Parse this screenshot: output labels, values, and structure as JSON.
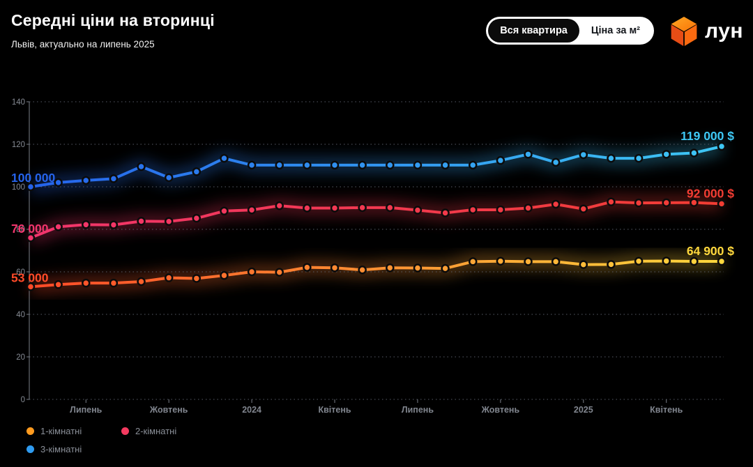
{
  "header": {
    "title": "Середні ціни на вторинці",
    "subtitle": "Львів, актуально на липень 2025"
  },
  "toggle": {
    "options": [
      {
        "label": "Вся квартира",
        "active": true
      },
      {
        "label": "Ціна за м²",
        "active": false
      }
    ]
  },
  "logo": {
    "text": "лун"
  },
  "legend": [
    {
      "label": "1-кімнатні",
      "color": "#ff9b1f"
    },
    {
      "label": "2-кімнатні",
      "color": "#f43a5f"
    },
    {
      "label": "3-кімнатні",
      "color": "#2f9bf0"
    }
  ],
  "chart_data": {
    "type": "line",
    "title": "Середні ціни на вторинці",
    "subtitle": "Львів, актуально на липень 2025",
    "unit": "thousand USD",
    "ylim": [
      0,
      140
    ],
    "y_ticks": [
      0,
      20,
      40,
      60,
      80,
      100,
      120,
      140
    ],
    "grid": "dotted-horizontal",
    "x_tick_labels": [
      {
        "i": 2,
        "label": "Липень"
      },
      {
        "i": 5,
        "label": "Жовтень"
      },
      {
        "i": 8,
        "label": "2024"
      },
      {
        "i": 11,
        "label": "Квітень"
      },
      {
        "i": 14,
        "label": "Липень"
      },
      {
        "i": 17,
        "label": "Жовтень"
      },
      {
        "i": 20,
        "label": "2025"
      },
      {
        "i": 23,
        "label": "Квітень"
      }
    ],
    "series": [
      {
        "name": "1-кімнатні",
        "color_start": "#ff4a28",
        "color_end": "#ffd83d",
        "start_label": "53 000",
        "end_label": "64 900 $",
        "values": [
          53,
          54,
          54.7,
          54.7,
          55.4,
          57.2,
          56.9,
          58.3,
          60,
          59.8,
          62.1,
          61.9,
          60.9,
          61.9,
          61.8,
          61.6,
          64.8,
          65,
          64.8,
          64.8,
          63.4,
          63.5,
          65,
          65.1,
          64.9,
          64.9
        ]
      },
      {
        "name": "2-кімнатні",
        "color_start": "#f2356d",
        "color_end": "#f23d33",
        "start_label": "76 000",
        "end_label": "92 000 $",
        "values": [
          76,
          81.2,
          82.2,
          82.1,
          83.8,
          83.7,
          85.2,
          88.6,
          89.1,
          91.1,
          90,
          90,
          90.2,
          90.2,
          89,
          87.7,
          89.2,
          89.2,
          90,
          91.8,
          89.6,
          92.9,
          92.4,
          92.5,
          92.6,
          92
        ]
      },
      {
        "name": "3-кімнатні",
        "color_start": "#2563eb",
        "color_end": "#3ec7f4",
        "start_label": "100 000",
        "end_label": "119 000 $",
        "values": [
          100,
          102,
          103,
          103.8,
          109.5,
          104.3,
          107.1,
          113.4,
          110.2,
          110.2,
          110.2,
          110.2,
          110.2,
          110.2,
          110.2,
          110.2,
          110.2,
          112.4,
          115.3,
          111.5,
          115.1,
          113.4,
          113.4,
          115.3,
          115.9,
          119
        ]
      }
    ]
  }
}
